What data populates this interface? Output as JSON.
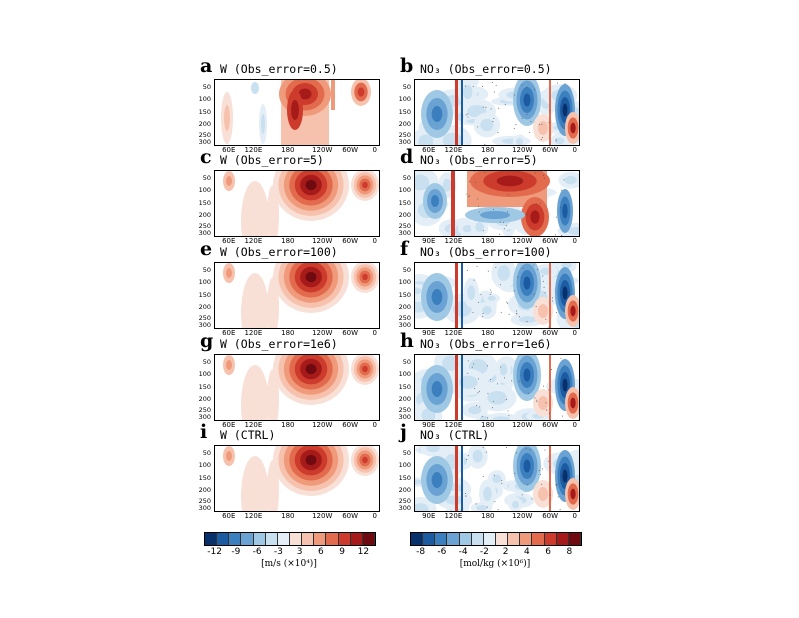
{
  "figure": {
    "left_colorbar_label": "[m/s (×10⁴)]",
    "right_colorbar_label": "[mol/kg (×10⁶)]",
    "left_colorbar_ticks": [
      "-12",
      "-9",
      "-6",
      "-3",
      "3",
      "6",
      "9",
      "12"
    ],
    "right_colorbar_ticks": [
      "-8",
      "-6",
      "-4",
      "-2",
      "2",
      "4",
      "6",
      "8"
    ]
  },
  "palette": {
    "blues": [
      "#08306b",
      "#1c5aa2",
      "#3b7fbf",
      "#6aa3d3",
      "#9ec8e4",
      "#c9e0f0",
      "#e4eef7"
    ],
    "reds": [
      "#f9e0d7",
      "#f6c2ad",
      "#f09a7c",
      "#e26a4d",
      "#cc3b2b",
      "#a61b1a",
      "#6e0a10"
    ]
  },
  "chart_data": [
    {
      "type": "heatmap",
      "id": "a",
      "letter": "a",
      "title": "W (Obs_error=0.5)",
      "variable": "W",
      "obs_error": "0.5",
      "yticks": [
        "50",
        "100",
        "150",
        "200",
        "250",
        "300"
      ],
      "xticks": [
        "60E",
        "120E",
        "180",
        "120W",
        "60W",
        "0"
      ]
    },
    {
      "type": "heatmap",
      "id": "b",
      "letter": "b",
      "title": "NO₃ (Obs_error=0.5)",
      "variable": "NO3",
      "obs_error": "0.5",
      "yticks": [
        "50",
        "100",
        "150",
        "200",
        "250",
        "300"
      ],
      "xticks": [
        "60E",
        "120E",
        "180",
        "120W",
        "60W",
        "0"
      ]
    },
    {
      "type": "heatmap",
      "id": "c",
      "letter": "c",
      "title": "W (Obs_error=5)",
      "variable": "W",
      "obs_error": "5",
      "yticks": [
        "50",
        "100",
        "150",
        "200",
        "250",
        "300"
      ],
      "xticks": [
        "60E",
        "120E",
        "180",
        "120W",
        "60W",
        "0"
      ]
    },
    {
      "type": "heatmap",
      "id": "d",
      "letter": "d",
      "title": "NO₃ (Obs_error=5)",
      "variable": "NO3",
      "obs_error": "5",
      "yticks": [
        "50",
        "100",
        "150",
        "200",
        "250",
        "300"
      ],
      "xticks": [
        "90E",
        "120E",
        "180",
        "120W",
        "60W",
        "0"
      ]
    },
    {
      "type": "heatmap",
      "id": "e",
      "letter": "e",
      "title": "W (Obs_error=100)",
      "variable": "W",
      "obs_error": "100",
      "yticks": [
        "50",
        "100",
        "150",
        "200",
        "250",
        "300"
      ],
      "xticks": [
        "60E",
        "120E",
        "180",
        "120W",
        "60W",
        "0"
      ]
    },
    {
      "type": "heatmap",
      "id": "f",
      "letter": "f",
      "title": "NO₃ (Obs_error=100)",
      "variable": "NO3",
      "obs_error": "100",
      "yticks": [
        "50",
        "100",
        "150",
        "200",
        "250",
        "300"
      ],
      "xticks": [
        "90E",
        "120E",
        "180",
        "120W",
        "60W",
        "0"
      ]
    },
    {
      "type": "heatmap",
      "id": "g",
      "letter": "g",
      "title": "W (Obs_error=1e6)",
      "variable": "W",
      "obs_error": "1e6",
      "yticks": [
        "50",
        "100",
        "150",
        "200",
        "250",
        "300"
      ],
      "xticks": [
        "60E",
        "120E",
        "180",
        "120W",
        "60W",
        "0"
      ]
    },
    {
      "type": "heatmap",
      "id": "h",
      "letter": "h",
      "title": "NO₃ (Obs_error=1e6)",
      "variable": "NO3",
      "obs_error": "1e6",
      "yticks": [
        "50",
        "100",
        "150",
        "200",
        "250",
        "300"
      ],
      "xticks": [
        "90E",
        "120E",
        "180",
        "120W",
        "60W",
        "0"
      ]
    },
    {
      "type": "heatmap",
      "id": "i",
      "letter": "i",
      "title": "W (CTRL)",
      "variable": "W",
      "obs_error": "CTRL",
      "yticks": [
        "50",
        "100",
        "150",
        "200",
        "250",
        "300"
      ],
      "xticks": [
        "60E",
        "120E",
        "180",
        "120W",
        "60W",
        "0"
      ]
    },
    {
      "type": "heatmap",
      "id": "j",
      "letter": "j",
      "title": "NO₃ (CTRL)",
      "variable": "NO3",
      "obs_error": "CTRL",
      "yticks": [
        "50",
        "100",
        "150",
        "200",
        "250",
        "300"
      ],
      "xticks": [
        "90E",
        "120E",
        "180",
        "120W",
        "60W",
        "0"
      ]
    }
  ]
}
